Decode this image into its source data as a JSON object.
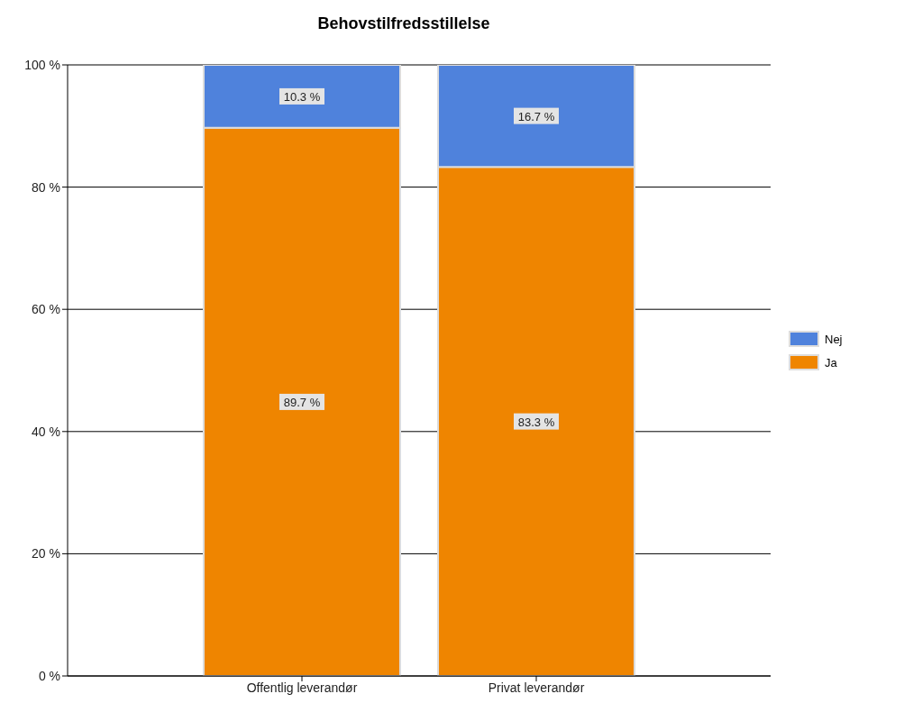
{
  "chart_data": {
    "type": "bar",
    "title": "Behovstilfredsstillelse",
    "categories": [
      "Offentlig leverandør",
      "Privat leverandør"
    ],
    "stacked": true,
    "series": [
      {
        "name": "Ja",
        "color": "#ef8500",
        "values": [
          89.7,
          83.3
        ],
        "value_labels": [
          "89.7 %",
          "83.3 %"
        ]
      },
      {
        "name": "Nej",
        "color": "#4f82dc",
        "values": [
          10.3,
          16.7
        ],
        "value_labels": [
          "10.3 %",
          "16.7 %"
        ]
      }
    ],
    "ylim": [
      0,
      100
    ],
    "yticks": [
      {
        "value": 0,
        "label": "0 %"
      },
      {
        "value": 20,
        "label": "20 %"
      },
      {
        "value": 40,
        "label": "40 %"
      },
      {
        "value": 60,
        "label": "60 %"
      },
      {
        "value": 80,
        "label": "80 %"
      },
      {
        "value": 100,
        "label": "100 %"
      }
    ],
    "grid": "y",
    "legend": "right"
  }
}
